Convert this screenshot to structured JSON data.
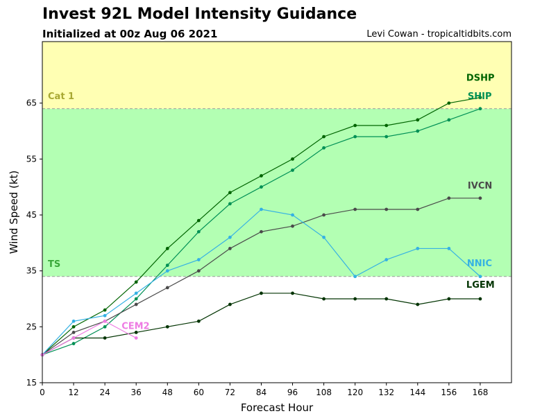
{
  "header": {
    "title": "Invest 92L Model Intensity Guidance",
    "subtitle": "Initialized at 00z Aug 06 2021",
    "credit": "Levi Cowan - tropicaltidbits.com"
  },
  "chart_data": {
    "type": "line",
    "title": "Invest 92L Model Intensity Guidance",
    "subtitle": "Initialized at 00z Aug 06 2021",
    "xlabel": "Forecast Hour",
    "ylabel": "Wind Speed (kt)",
    "xlim": [
      0,
      180
    ],
    "ylim": [
      15,
      76
    ],
    "xticks": [
      0,
      12,
      24,
      36,
      48,
      60,
      72,
      84,
      96,
      108,
      120,
      132,
      144,
      156,
      168
    ],
    "yticks": [
      15,
      25,
      35,
      45,
      55,
      65
    ],
    "grid": false,
    "thresholds": [
      {
        "label": "TS",
        "value": 34,
        "color": "#3aa83a"
      },
      {
        "label": "Cat 1",
        "value": 64,
        "color": "#a8a832"
      }
    ],
    "bands": [
      {
        "from": 34,
        "to": 64,
        "color": "#b3ffb3"
      },
      {
        "from": 64,
        "to": 76,
        "color": "#ffffb3"
      }
    ],
    "series": [
      {
        "name": "DSHP",
        "color": "#006400",
        "labelColor": "#006400",
        "x": [
          0,
          12,
          24,
          36,
          48,
          60,
          72,
          84,
          96,
          108,
          120,
          132,
          144,
          156,
          168
        ],
        "values": [
          20,
          25,
          28,
          33,
          39,
          44,
          49,
          52,
          55,
          59,
          61,
          61,
          62,
          65,
          66
        ]
      },
      {
        "name": "SHIP",
        "color": "#009055",
        "labelColor": "#009055",
        "x": [
          0,
          12,
          24,
          36,
          48,
          60,
          72,
          84,
          96,
          108,
          120,
          132,
          144,
          156,
          168
        ],
        "values": [
          20,
          22,
          25,
          30,
          36,
          42,
          47,
          50,
          53,
          57,
          59,
          59,
          60,
          62,
          64
        ]
      },
      {
        "name": "IVCN",
        "color": "#4a4a4a",
        "labelColor": "#4a4a4a",
        "x": [
          0,
          12,
          24,
          36,
          48,
          60,
          72,
          84,
          96,
          108,
          120,
          132,
          144,
          156,
          168
        ],
        "values": [
          20,
          24,
          26,
          29,
          32,
          35,
          39,
          42,
          43,
          45,
          46,
          46,
          46,
          48,
          48
        ]
      },
      {
        "name": "NNIC",
        "color": "#35b1e3",
        "labelColor": "#35b1e3",
        "x": [
          0,
          12,
          24,
          36,
          48,
          60,
          72,
          84,
          96,
          108,
          120,
          132,
          144,
          156,
          168
        ],
        "values": [
          20,
          26,
          27,
          31,
          35,
          37,
          41,
          46,
          45,
          41,
          34,
          37,
          39,
          39,
          34
        ]
      },
      {
        "name": "LGEM",
        "color": "#003300",
        "labelColor": "#003300",
        "x": [
          0,
          12,
          24,
          36,
          48,
          60,
          72,
          84,
          96,
          108,
          120,
          132,
          144,
          156,
          168
        ],
        "values": [
          20,
          23,
          23,
          24,
          25,
          26,
          29,
          31,
          31,
          30,
          30,
          30,
          29,
          30,
          30
        ]
      },
      {
        "name": "CEM2",
        "color": "#ee7be3",
        "labelColor": "#ee7be3",
        "x": [
          0,
          12,
          24,
          36
        ],
        "values": [
          20,
          23,
          26,
          23
        ]
      }
    ]
  }
}
